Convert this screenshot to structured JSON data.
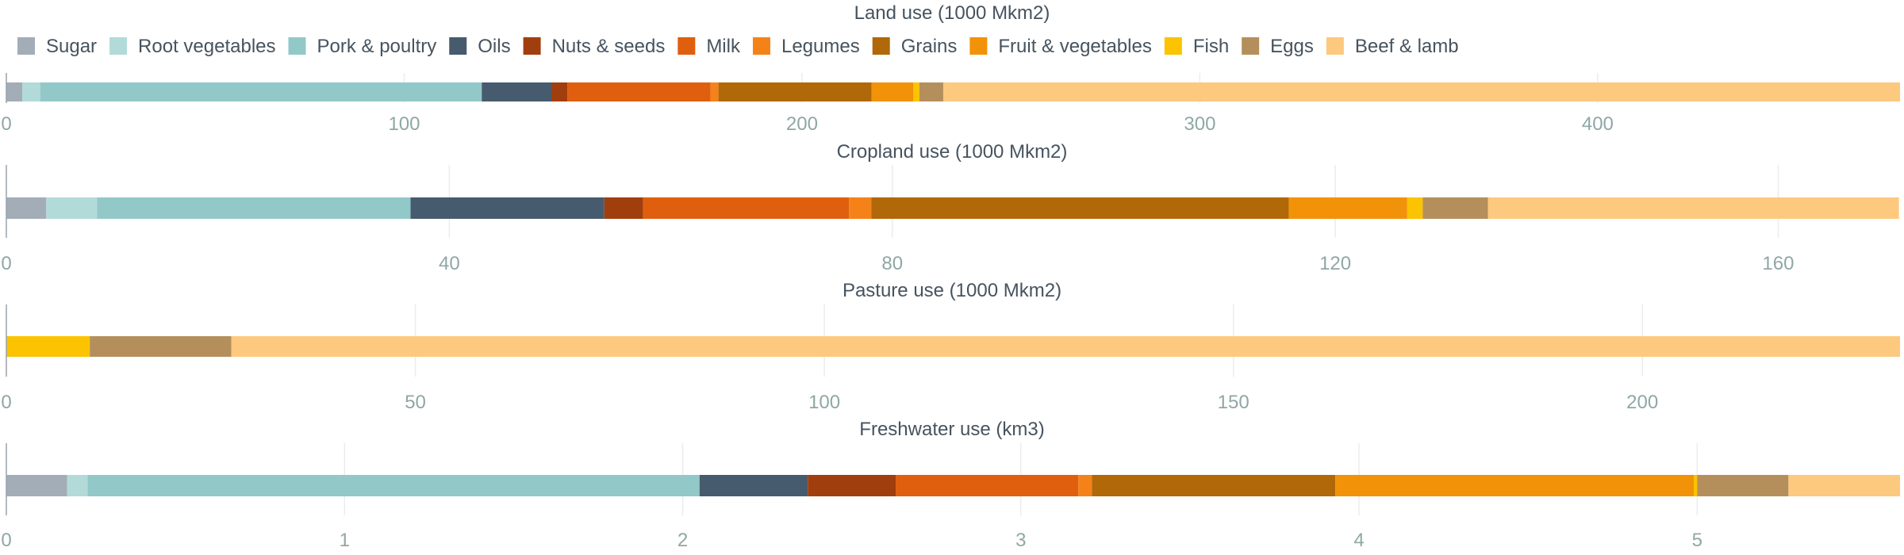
{
  "legend": [
    {
      "name": "Sugar",
      "color": "#a2adb8"
    },
    {
      "name": "Root vegetables",
      "color": "#b2dad8"
    },
    {
      "name": "Pork & poultry",
      "color": "#93c8c8"
    },
    {
      "name": "Oils",
      "color": "#475b6e"
    },
    {
      "name": "Nuts & seeds",
      "color": "#a13e0d"
    },
    {
      "name": "Milk",
      "color": "#e05f0e"
    },
    {
      "name": "Legumes",
      "color": "#f58219"
    },
    {
      "name": "Grains",
      "color": "#b06808"
    },
    {
      "name": "Fruit & vegetables",
      "color": "#f29208"
    },
    {
      "name": "Fish",
      "color": "#fbc300"
    },
    {
      "name": "Eggs",
      "color": "#b58f5b"
    },
    {
      "name": "Beef & lamb",
      "color": "#fdc97e"
    }
  ],
  "chart_data": [
    {
      "type": "bar",
      "orientation": "horizontal",
      "stacked": true,
      "title": "Land use (1000 Mkm2)",
      "xlim": [
        0,
        476
      ],
      "ticks": [
        0,
        100,
        200,
        300,
        400
      ],
      "series": [
        {
          "name": "Sugar",
          "value": 4
        },
        {
          "name": "Root vegetables",
          "value": 4.5
        },
        {
          "name": "Pork & poultry",
          "value": 111
        },
        {
          "name": "Oils",
          "value": 17.5
        },
        {
          "name": "Nuts & seeds",
          "value": 4
        },
        {
          "name": "Milk",
          "value": 36
        },
        {
          "name": "Legumes",
          "value": 2
        },
        {
          "name": "Grains",
          "value": 38.5
        },
        {
          "name": "Fruit & vegetables",
          "value": 10.5
        },
        {
          "name": "Fish",
          "value": 1.5
        },
        {
          "name": "Eggs",
          "value": 6
        },
        {
          "name": "Beef & lamb",
          "value": 240.5
        }
      ]
    },
    {
      "type": "bar",
      "orientation": "horizontal",
      "stacked": true,
      "title": "Cropland use (1000 Mkm2)",
      "xlim": [
        0,
        171
      ],
      "ticks": [
        0,
        40,
        80,
        120,
        160
      ],
      "series": [
        {
          "name": "Sugar",
          "value": 3.6
        },
        {
          "name": "Root vegetables",
          "value": 4.6
        },
        {
          "name": "Pork & poultry",
          "value": 28.3
        },
        {
          "name": "Oils",
          "value": 17.5
        },
        {
          "name": "Nuts & seeds",
          "value": 3.5
        },
        {
          "name": "Milk",
          "value": 18.6
        },
        {
          "name": "Legumes",
          "value": 2
        },
        {
          "name": "Grains",
          "value": 37.7
        },
        {
          "name": "Fruit & vegetables",
          "value": 10.7
        },
        {
          "name": "Fish",
          "value": 1.4
        },
        {
          "name": "Eggs",
          "value": 5.9
        },
        {
          "name": "Beef & lamb",
          "value": 37.1
        }
      ]
    },
    {
      "type": "bar",
      "orientation": "horizontal",
      "stacked": true,
      "title": "Pasture use (1000 Mkm2)",
      "xlim": [
        0,
        231.5
      ],
      "ticks": [
        0,
        50,
        100,
        150,
        200
      ],
      "series": [
        {
          "name": "Fish",
          "value": 10.2
        },
        {
          "name": "Eggs",
          "value": 17.3
        },
        {
          "name": "Beef & lamb",
          "value": 204
        }
      ]
    },
    {
      "type": "bar",
      "orientation": "horizontal",
      "stacked": true,
      "title": "Freshwater use (km3)",
      "xlim": [
        0,
        5.6
      ],
      "ticks": [
        0,
        1,
        2,
        3,
        4,
        5
      ],
      "tick_labels": [
        "0",
        "1",
        "2",
        "3",
        "4",
        "5"
      ],
      "series": [
        {
          "name": "Sugar",
          "value": 0.18
        },
        {
          "name": "Root vegetables",
          "value": 0.06
        },
        {
          "name": "Pork & poultry",
          "value": 1.81
        },
        {
          "name": "Oils",
          "value": 0.32
        },
        {
          "name": "Nuts & seeds",
          "value": 0.26
        },
        {
          "name": "Milk",
          "value": 0.54
        },
        {
          "name": "Legumes",
          "value": 0.04
        },
        {
          "name": "Grains",
          "value": 0.72
        },
        {
          "name": "Fruit & vegetables",
          "value": 1.06
        },
        {
          "name": "Fish",
          "value": 0.01
        },
        {
          "name": "Eggs",
          "value": 0.27
        },
        {
          "name": "Beef & lamb",
          "value": 0.33
        }
      ]
    }
  ]
}
